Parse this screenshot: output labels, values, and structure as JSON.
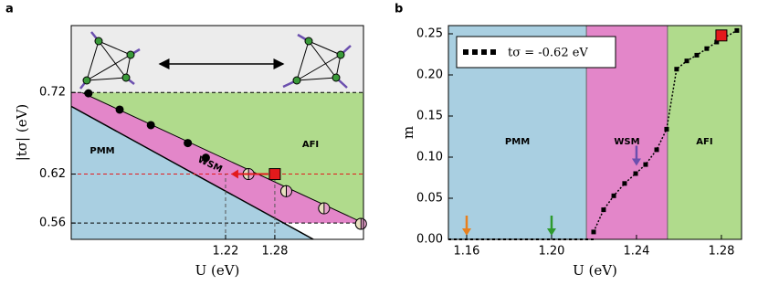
{
  "chart_data": [
    {
      "type": "phase",
      "panel_label": "a",
      "xlabel": "U (eV)",
      "ylabel": "|tσ| (eV)",
      "xlim": [
        1.032,
        1.388
      ],
      "ylim": [
        0.54,
        0.802
      ],
      "xticks": [
        1.22,
        1.28
      ],
      "yticks": [
        0.56,
        0.62,
        0.72
      ],
      "ytick_line_colors": [
        "#000000",
        "#e31a1c",
        "#000000"
      ],
      "regions": [
        {
          "label": "PMM",
          "color": "#a9cfe1"
        },
        {
          "label": "WSM",
          "color": "#e386c9"
        },
        {
          "label": "AFI",
          "color": "#b0db8c"
        }
      ],
      "lower_boundary": {
        "x": [
          1.032,
          1.327
        ],
        "y": [
          0.703,
          0.54
        ]
      },
      "upper_boundary": {
        "x": [
          1.032,
          1.388
        ],
        "y": [
          0.726,
          0.56
        ]
      },
      "markers": {
        "x": [
          1.053,
          1.091,
          1.129,
          1.174,
          1.196
        ],
        "y": [
          0.719,
          0.699,
          0.68,
          0.658,
          0.64
        ]
      },
      "half_markers": {
        "x": [
          1.248,
          1.294,
          1.34,
          1.385
        ],
        "y": [
          0.62,
          0.599,
          0.578,
          0.559
        ]
      },
      "highlight": {
        "x": 1.28,
        "y": 0.62,
        "color": "#e31a1c"
      }
    },
    {
      "type": "scatter",
      "panel_label": "b",
      "xlabel": "U (eV)",
      "ylabel": "m",
      "xlim": [
        1.1514,
        1.2895
      ],
      "ylim": [
        0,
        0.26
      ],
      "xticks": [
        1.16,
        {
          "value": 1.2,
          "label": "1.20"
        },
        1.24,
        1.28
      ],
      "yticks": [
        {
          "value": 0,
          "label": "0.00"
        },
        0.05,
        {
          "value": 0.1,
          "label": "0.10"
        },
        0.15,
        {
          "value": 0.2,
          "label": "0.20"
        },
        0.25
      ],
      "phase_boundaries": [
        1.2164,
        1.2546
      ],
      "regions": [
        {
          "label": "PMM",
          "color": "#a9cfe1"
        },
        {
          "label": "WSM",
          "color": "#e386c9"
        },
        {
          "label": "AFI",
          "color": "#b0db8c"
        }
      ],
      "series": [
        {
          "name": "tσ = -0.62 eV",
          "color": "#000000",
          "x": [
            1.2198,
            1.2245,
            1.2293,
            1.2344,
            1.2396,
            1.2443,
            1.2495,
            1.2542,
            1.2589,
            1.2637,
            1.2684,
            1.2731,
            1.2778,
            1.2873
          ],
          "values": [
            0.009,
            0.036,
            0.053,
            0.068,
            0.08,
            0.091,
            0.109,
            0.134,
            0.207,
            0.217,
            0.224,
            0.232,
            0.24,
            0.254
          ]
        }
      ],
      "highlight": {
        "x": 1.28,
        "y": 0.248,
        "color": "#e31a1c"
      },
      "arrows": [
        {
          "x": 1.16,
          "y": 0,
          "color": "#e8801e"
        },
        {
          "x": 1.2,
          "y": 0,
          "color": "#2e9a2e"
        },
        {
          "x": 1.24,
          "y": 0.085,
          "color": "#6b4fae"
        }
      ]
    }
  ]
}
